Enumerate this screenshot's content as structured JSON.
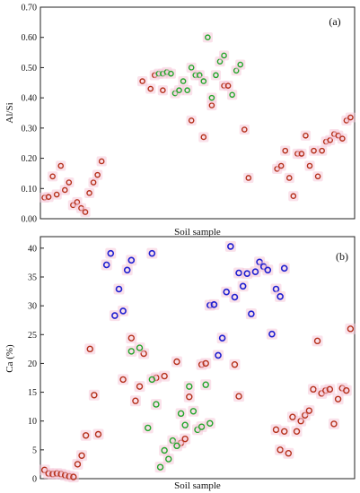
{
  "colors": {
    "red": "#b5301a",
    "green": "#22a52a",
    "blue": "#1f1fd0",
    "glow": "#f5c9d8"
  },
  "chart_data": [
    {
      "type": "scatter",
      "panel_label": "(a)",
      "xlabel": "Soil sample",
      "ylabel": "Al/Si",
      "ylim": [
        0,
        0.7
      ],
      "yticks": [
        "0.00",
        "0.10",
        "0.20",
        "0.30",
        "0.40",
        "0.50",
        "0.60",
        "0.70"
      ],
      "grid": false,
      "series": [
        {
          "color": "red",
          "points": [
            [
              1,
              0.07
            ],
            [
              2,
              0.072
            ],
            [
              3,
              0.14
            ],
            [
              4,
              0.08
            ],
            [
              5,
              0.175
            ],
            [
              6,
              0.095
            ],
            [
              7,
              0.12
            ],
            [
              8,
              0.045
            ],
            [
              9,
              0.055
            ],
            [
              10,
              0.035
            ],
            [
              11,
              0.022
            ],
            [
              12,
              0.085
            ],
            [
              13,
              0.12
            ],
            [
              14,
              0.145
            ],
            [
              15,
              0.19
            ],
            [
              25,
              0.455
            ],
            [
              27,
              0.43
            ],
            [
              28,
              0.475
            ],
            [
              30,
              0.425
            ],
            [
              37,
              0.325
            ],
            [
              40,
              0.27
            ],
            [
              42,
              0.375
            ],
            [
              45,
              0.44
            ],
            [
              46,
              0.44
            ],
            [
              50,
              0.295
            ],
            [
              51,
              0.135
            ],
            [
              58,
              0.165
            ],
            [
              59,
              0.175
            ],
            [
              60,
              0.225
            ],
            [
              61,
              0.135
            ],
            [
              62,
              0.075
            ],
            [
              63,
              0.215
            ],
            [
              64,
              0.215
            ],
            [
              65,
              0.275
            ],
            [
              66,
              0.175
            ],
            [
              67,
              0.225
            ],
            [
              68,
              0.14
            ],
            [
              69,
              0.225
            ],
            [
              70,
              0.255
            ],
            [
              71,
              0.26
            ],
            [
              72,
              0.28
            ],
            [
              73,
              0.275
            ],
            [
              74,
              0.265
            ],
            [
              75,
              0.325
            ],
            [
              76,
              0.335
            ]
          ]
        },
        {
          "color": "green",
          "points": [
            [
              29,
              0.48
            ],
            [
              30,
              0.48
            ],
            [
              31,
              0.485
            ],
            [
              32,
              0.48
            ],
            [
              33,
              0.415
            ],
            [
              34,
              0.425
            ],
            [
              35,
              0.455
            ],
            [
              36,
              0.425
            ],
            [
              37,
              0.5
            ],
            [
              38,
              0.475
            ],
            [
              39,
              0.475
            ],
            [
              40,
              0.455
            ],
            [
              41,
              0.6
            ],
            [
              42,
              0.4
            ],
            [
              43,
              0.475
            ],
            [
              44,
              0.52
            ],
            [
              45,
              0.54
            ],
            [
              47,
              0.41
            ],
            [
              48,
              0.49
            ],
            [
              49,
              0.51
            ]
          ]
        }
      ]
    },
    {
      "type": "scatter",
      "panel_label": "(b)",
      "xlabel": "Soil sample",
      "ylabel": "Ca (%)",
      "ylim": [
        0,
        42
      ],
      "yticks": [
        "0",
        "5",
        "10",
        "15",
        "20",
        "25",
        "30",
        "35",
        "40"
      ],
      "grid": false,
      "series": [
        {
          "color": "red",
          "points": [
            [
              1,
              1.5
            ],
            [
              2,
              0.9
            ],
            [
              3,
              0.8
            ],
            [
              4,
              0.9
            ],
            [
              5,
              0.8
            ],
            [
              6,
              0.6
            ],
            [
              7,
              0.4
            ],
            [
              8,
              0.3
            ],
            [
              9,
              2.5
            ],
            [
              10,
              4
            ],
            [
              11,
              7.5
            ],
            [
              12,
              22.5
            ],
            [
              13,
              14.5
            ],
            [
              14,
              7.7
            ],
            [
              20,
              17.2
            ],
            [
              22,
              24.4
            ],
            [
              23,
              13.5
            ],
            [
              24,
              16
            ],
            [
              25,
              21.7
            ],
            [
              28,
              17.5
            ],
            [
              30,
              17.8
            ],
            [
              33,
              20.3
            ],
            [
              34,
              6.2
            ],
            [
              35,
              6.9
            ],
            [
              36,
              14.2
            ],
            [
              39,
              19.8
            ],
            [
              40,
              20
            ],
            [
              47,
              19.8
            ],
            [
              48,
              14.3
            ],
            [
              57,
              8.5
            ],
            [
              58,
              5
            ],
            [
              59,
              8.2
            ],
            [
              60,
              4.4
            ],
            [
              61,
              10.7
            ],
            [
              62,
              8.2
            ],
            [
              63,
              10
            ],
            [
              64,
              11
            ],
            [
              65,
              11.8
            ],
            [
              66,
              15.5
            ],
            [
              67,
              23.9
            ],
            [
              68,
              14.8
            ],
            [
              69,
              15.3
            ],
            [
              70,
              15.5
            ],
            [
              71,
              9.5
            ],
            [
              72,
              13.8
            ],
            [
              73,
              15.7
            ],
            [
              74,
              15.3
            ],
            [
              75,
              26
            ]
          ]
        },
        {
          "color": "green",
          "points": [
            [
              22,
              22.1
            ],
            [
              24,
              22.7
            ],
            [
              26,
              8.8
            ],
            [
              27,
              17.2
            ],
            [
              28,
              12.9
            ],
            [
              29,
              2
            ],
            [
              30,
              4.9
            ],
            [
              31,
              3.4
            ],
            [
              32,
              6.6
            ],
            [
              33,
              5.7
            ],
            [
              34,
              11.3
            ],
            [
              35,
              9.3
            ],
            [
              36,
              16
            ],
            [
              37,
              11.7
            ],
            [
              38,
              8.5
            ],
            [
              39,
              9
            ],
            [
              40,
              16.3
            ],
            [
              41,
              9.6
            ]
          ]
        },
        {
          "color": "blue",
          "points": [
            [
              16,
              37.1
            ],
            [
              17,
              39.1
            ],
            [
              18,
              28.3
            ],
            [
              19,
              32.9
            ],
            [
              20,
              29.1
            ],
            [
              21,
              36.2
            ],
            [
              22,
              37.9
            ],
            [
              27,
              39.1
            ],
            [
              41,
              30.1
            ],
            [
              42,
              30.2
            ],
            [
              43,
              21.4
            ],
            [
              44,
              24.4
            ],
            [
              45,
              32.4
            ],
            [
              46,
              40.3
            ],
            [
              47,
              31.5
            ],
            [
              48,
              35.7
            ],
            [
              49,
              33.4
            ],
            [
              50,
              35.6
            ],
            [
              51,
              28.6
            ],
            [
              52,
              35.9
            ],
            [
              53,
              37.6
            ],
            [
              54,
              36.8
            ],
            [
              55,
              36.2
            ],
            [
              56,
              25.1
            ],
            [
              57,
              32.9
            ],
            [
              58,
              31.6
            ],
            [
              59,
              36.5
            ]
          ]
        }
      ]
    }
  ]
}
